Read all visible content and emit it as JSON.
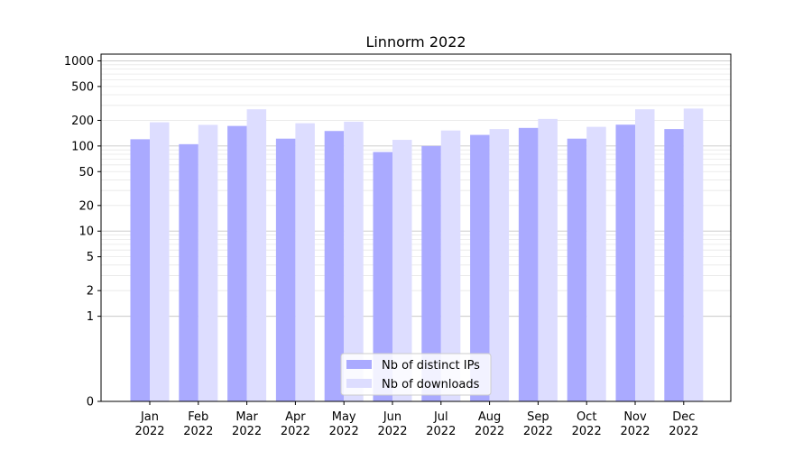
{
  "chart_data": {
    "type": "bar",
    "title": "Linnorm 2022",
    "xlabel": "",
    "ylabel": "",
    "yscale": "symlog",
    "ylim": [
      0,
      1200
    ],
    "grid": "y (major and minor)",
    "legend_position": "lower-center",
    "categories": [
      [
        "Jan",
        "2022"
      ],
      [
        "Feb",
        "2022"
      ],
      [
        "Mar",
        "2022"
      ],
      [
        "Apr",
        "2022"
      ],
      [
        "May",
        "2022"
      ],
      [
        "Jun",
        "2022"
      ],
      [
        "Jul",
        "2022"
      ],
      [
        "Aug",
        "2022"
      ],
      [
        "Sep",
        "2022"
      ],
      [
        "Oct",
        "2022"
      ],
      [
        "Nov",
        "2022"
      ],
      [
        "Dec",
        "2022"
      ]
    ],
    "y_ticks": [
      0,
      1,
      2,
      5,
      10,
      20,
      50,
      100,
      200,
      500,
      1000
    ],
    "series": [
      {
        "name": "Nb of distinct IPs",
        "color": "#aaaaff",
        "values": [
          120,
          105,
          172,
          122,
          150,
          85,
          100,
          135,
          163,
          122,
          178,
          158
        ]
      },
      {
        "name": "Nb of downloads",
        "color": "#ddddff",
        "values": [
          190,
          177,
          270,
          185,
          193,
          118,
          152,
          158,
          208,
          168,
          270,
          275
        ]
      }
    ]
  }
}
